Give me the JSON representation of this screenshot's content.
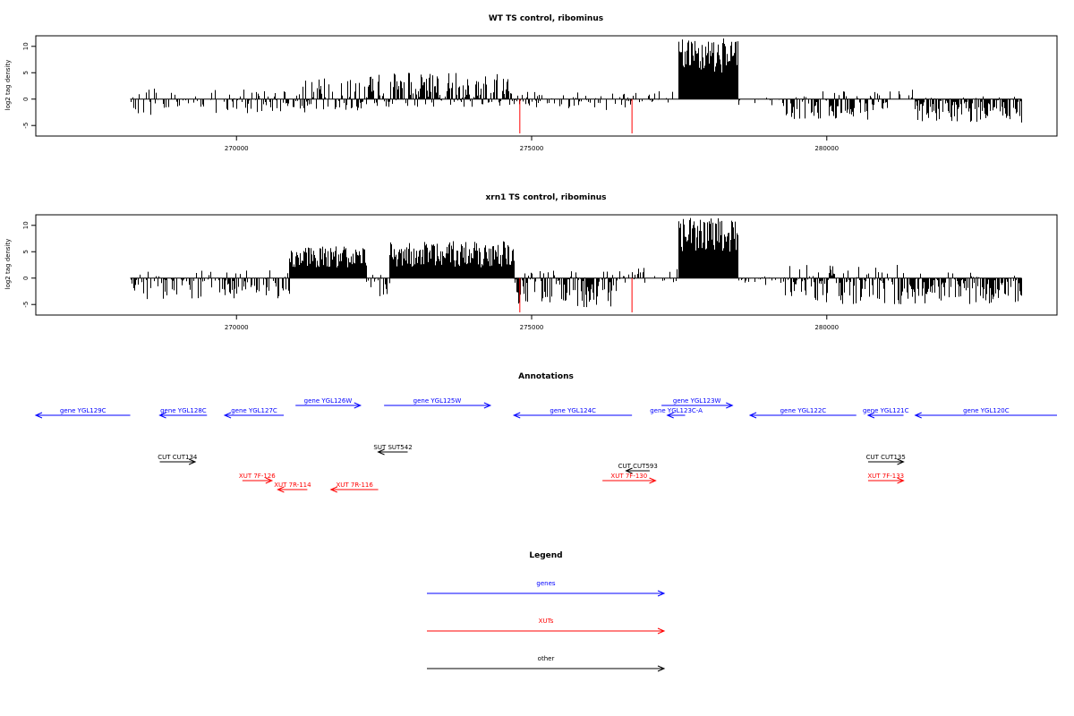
{
  "chart_data": [
    {
      "type": "bar",
      "title": "WT TS control, ribominus",
      "ylabel": "log2 tag density",
      "xlabel": "",
      "xlim": [
        266600,
        283900
      ],
      "ylim": [
        -7,
        12
      ],
      "yticks": [
        -5,
        0,
        5,
        10
      ],
      "xticks": [
        270000,
        275000,
        280000
      ],
      "xtick_labels": [
        "270000",
        "275000",
        "280000"
      ],
      "colors": {
        "bars": "#000000",
        "highlight": "#ff0000"
      },
      "segments": [
        {
          "start": 268200,
          "end": 270300,
          "min": -3,
          "max": 2,
          "density": 0.45
        },
        {
          "start": 270300,
          "end": 271000,
          "min": -2.5,
          "max": 1.5,
          "density": 0.6
        },
        {
          "start": 271000,
          "end": 272200,
          "min": -2.5,
          "max": 4,
          "density": 0.75
        },
        {
          "start": 272200,
          "end": 274700,
          "min": -1.5,
          "max": 5,
          "density": 0.9
        },
        {
          "start": 274700,
          "end": 276700,
          "min": -2.5,
          "max": 1.5,
          "density": 0.5
        },
        {
          "start": 276700,
          "end": 277500,
          "min": -1,
          "max": 1.5,
          "density": 0.35
        },
        {
          "start": 277500,
          "end": 278500,
          "min": 0,
          "max": 11.5,
          "density": 1.0,
          "positive": true,
          "base": 5
        },
        {
          "start": 278500,
          "end": 279300,
          "min": -1.5,
          "max": 0.5,
          "density": 0.2
        },
        {
          "start": 279300,
          "end": 281000,
          "min": -4,
          "max": 1.5,
          "density": 0.7
        },
        {
          "start": 281000,
          "end": 281500,
          "min": -2,
          "max": 2,
          "density": 0.4
        },
        {
          "start": 281500,
          "end": 283300,
          "min": -4.5,
          "max": 0.5,
          "density": 0.9
        }
      ],
      "highlights": [
        {
          "x": 274800,
          "y": -6.5
        },
        {
          "x": 276700,
          "y": -6.5
        }
      ]
    },
    {
      "type": "bar",
      "title": "xrn1 TS control, ribominus",
      "ylabel": "log2 tag density",
      "xlabel": "",
      "xlim": [
        266600,
        283900
      ],
      "ylim": [
        -7,
        12
      ],
      "yticks": [
        -5,
        0,
        5,
        10
      ],
      "xticks": [
        270000,
        275000,
        280000
      ],
      "xtick_labels": [
        "270000",
        "275000",
        "280000"
      ],
      "colors": {
        "bars": "#000000",
        "highlight": "#ff0000"
      },
      "segments": [
        {
          "start": 268200,
          "end": 270900,
          "min": -4,
          "max": 1.5,
          "density": 0.55
        },
        {
          "start": 270900,
          "end": 272200,
          "min": -1,
          "max": 6,
          "density": 1.0,
          "positive": true,
          "base": 2
        },
        {
          "start": 272200,
          "end": 272600,
          "min": -3.5,
          "max": 1,
          "density": 0.6
        },
        {
          "start": 272600,
          "end": 274700,
          "min": -1,
          "max": 7,
          "density": 1.0,
          "positive": true,
          "base": 2
        },
        {
          "start": 274700,
          "end": 276500,
          "min": -5.5,
          "max": 1.5,
          "density": 0.9
        },
        {
          "start": 276500,
          "end": 277500,
          "min": -1.5,
          "max": 2,
          "density": 0.4
        },
        {
          "start": 277500,
          "end": 278500,
          "min": 0,
          "max": 11.5,
          "density": 1.0,
          "positive": true,
          "base": 5
        },
        {
          "start": 278500,
          "end": 279300,
          "min": -1.5,
          "max": 0.5,
          "density": 0.25
        },
        {
          "start": 279300,
          "end": 281300,
          "min": -5,
          "max": 2.5,
          "density": 0.85
        },
        {
          "start": 281300,
          "end": 283300,
          "min": -5,
          "max": 1.5,
          "density": 0.85
        }
      ],
      "highlights": [
        {
          "x": 274800,
          "y": -6.5
        },
        {
          "x": 276700,
          "y": -6.5
        }
      ]
    }
  ],
  "annotations": {
    "title": "Annotations",
    "items": [
      {
        "label": "gene YGL129C",
        "color": "#0000ff",
        "dir": "left",
        "start": 266600,
        "end": 268200
      },
      {
        "label": "gene YGL128C",
        "color": "#0000ff",
        "dir": "left",
        "start": 268700,
        "end": 269500
      },
      {
        "label": "gene YGL127C",
        "color": "#0000ff",
        "dir": "left",
        "start": 269800,
        "end": 270800
      },
      {
        "label": "gene YGL126W",
        "color": "#0000ff",
        "dir": "right",
        "start": 271000,
        "end": 272100
      },
      {
        "label": "gene YGL125W",
        "color": "#0000ff",
        "dir": "right",
        "start": 272500,
        "end": 274300
      },
      {
        "label": "gene YGL124C",
        "color": "#0000ff",
        "dir": "left",
        "start": 274700,
        "end": 276700
      },
      {
        "label": "gene YGL123W",
        "color": "#0000ff",
        "dir": "right",
        "start": 277200,
        "end": 278400
      },
      {
        "label": "gene YGL123C-A",
        "color": "#0000ff",
        "dir": "left",
        "start": 277300,
        "end": 277600
      },
      {
        "label": "gene YGL122C",
        "color": "#0000ff",
        "dir": "left",
        "start": 278700,
        "end": 280500
      },
      {
        "label": "gene YGL121C",
        "color": "#0000ff",
        "dir": "left",
        "start": 280700,
        "end": 281300
      },
      {
        "label": "gene YGL120C",
        "color": "#0000ff",
        "dir": "left",
        "start": 281500,
        "end": 283900
      },
      {
        "label": "CUT CUT134",
        "color": "#000000",
        "dir": "right",
        "start": 268700,
        "end": 269300
      },
      {
        "label": "SUT SUT542",
        "color": "#000000",
        "dir": "left",
        "start": 272400,
        "end": 272900
      },
      {
        "label": "CUT CUT593",
        "color": "#000000",
        "dir": "left",
        "start": 276600,
        "end": 277000
      },
      {
        "label": "CUT CUT135",
        "color": "#000000",
        "dir": "right",
        "start": 280700,
        "end": 281300
      },
      {
        "label": "XUT 7F-126",
        "color": "#ff0000",
        "dir": "right",
        "start": 270100,
        "end": 270600
      },
      {
        "label": "XUT 7R-114",
        "color": "#ff0000",
        "dir": "left",
        "start": 270700,
        "end": 271200
      },
      {
        "label": "XUT 7R-116",
        "color": "#ff0000",
        "dir": "left",
        "start": 271600,
        "end": 272400
      },
      {
        "label": "XUT 7F-130",
        "color": "#ff0000",
        "dir": "right",
        "start": 276200,
        "end": 277100
      },
      {
        "label": "XUT 7F-133",
        "color": "#ff0000",
        "dir": "right",
        "start": 280700,
        "end": 281300
      }
    ]
  },
  "legend": {
    "title": "Legend",
    "items": [
      {
        "label": "genes",
        "color": "#0000ff"
      },
      {
        "label": "XUTs",
        "color": "#ff0000"
      },
      {
        "label": "other",
        "color": "#000000"
      }
    ]
  }
}
